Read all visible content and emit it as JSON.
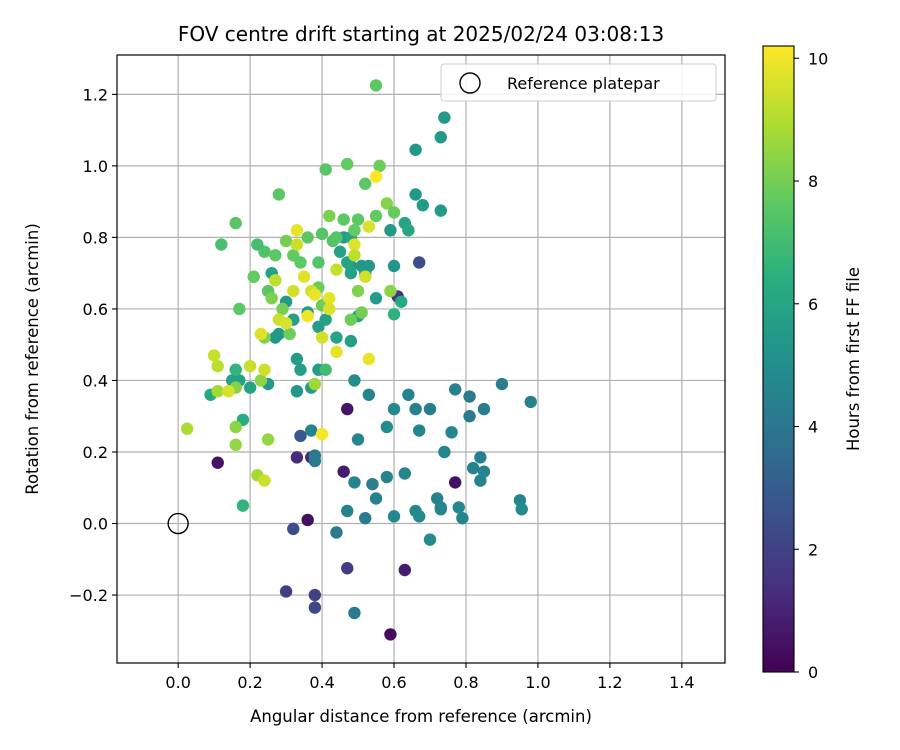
{
  "chart_data": {
    "type": "scatter",
    "title": "FOV centre drift starting at 2025/02/24 03:08:13",
    "xlabel": "Angular distance from reference (arcmin)",
    "ylabel": "Rotation from reference (arcmin)",
    "xlim": [
      -0.17,
      1.52
    ],
    "ylim": [
      -0.39,
      1.31
    ],
    "x_ticks": [
      "0.0",
      "0.2",
      "0.4",
      "0.6",
      "0.8",
      "1.0",
      "1.2",
      "1.4"
    ],
    "x_tick_values": [
      0,
      0.2,
      0.4,
      0.6,
      0.8,
      1.0,
      1.2,
      1.4
    ],
    "y_ticks": [
      "−0.2",
      "0.0",
      "0.2",
      "0.4",
      "0.6",
      "0.8",
      "1.0",
      "1.2"
    ],
    "y_tick_values": [
      -0.2,
      0,
      0.2,
      0.4,
      0.6,
      0.8,
      1.0,
      1.2
    ],
    "grid": true,
    "colormap": "viridis",
    "colorbar": {
      "label": "Hours from first FF file",
      "range": [
        0,
        10.2
      ],
      "ticks": [
        "0",
        "2",
        "4",
        "6",
        "8",
        "10"
      ],
      "tick_values": [
        0,
        2,
        4,
        6,
        8,
        10
      ]
    },
    "legend": {
      "label": "Reference platepar",
      "placement": "top-right",
      "marker": "open-circle"
    },
    "reference_point": {
      "x": 0.0,
      "y": 0.0
    },
    "points": [
      [
        0.59,
        -0.31,
        0.3
      ],
      [
        0.36,
        0.01,
        0.4
      ],
      [
        0.47,
        0.32,
        0.6
      ],
      [
        0.11,
        0.17,
        0.5
      ],
      [
        0.77,
        0.115,
        0.5
      ],
      [
        0.46,
        0.145,
        0.8
      ],
      [
        0.63,
        -0.13,
        0.8
      ],
      [
        0.37,
        0.185,
        1.2
      ],
      [
        0.33,
        0.185,
        1.2
      ],
      [
        0.47,
        -0.125,
        1.8
      ],
      [
        0.3,
        -0.19,
        1.9
      ],
      [
        0.38,
        -0.2,
        2.0
      ],
      [
        0.38,
        -0.235,
        2.2
      ],
      [
        0.32,
        -0.015,
        2.4
      ],
      [
        0.34,
        0.245,
        2.8
      ],
      [
        0.67,
        0.73,
        2.4
      ],
      [
        0.61,
        0.635,
        1.5
      ],
      [
        0.49,
        -0.25,
        4.1
      ],
      [
        0.44,
        -0.025,
        4.2
      ],
      [
        0.38,
        0.19,
        4.1
      ],
      [
        0.38,
        0.175,
        4.2
      ],
      [
        0.37,
        0.26,
        4.5
      ],
      [
        0.49,
        0.115,
        4.6
      ],
      [
        0.47,
        0.035,
        4.5
      ],
      [
        0.52,
        0.015,
        4.2
      ],
      [
        0.54,
        0.11,
        4.3
      ],
      [
        0.55,
        0.07,
        4.4
      ],
      [
        0.58,
        0.13,
        4.5
      ],
      [
        0.6,
        0.02,
        4.7
      ],
      [
        0.63,
        0.14,
        4.6
      ],
      [
        0.66,
        0.035,
        4.7
      ],
      [
        0.67,
        0.02,
        4.8
      ],
      [
        0.7,
        -0.045,
        4.8
      ],
      [
        0.72,
        0.07,
        4.5
      ],
      [
        0.73,
        0.045,
        4.6
      ],
      [
        0.73,
        0.04,
        4.7
      ],
      [
        0.78,
        0.045,
        4.7
      ],
      [
        0.79,
        0.015,
        4.6
      ],
      [
        0.82,
        0.155,
        4.5
      ],
      [
        0.84,
        0.12,
        4.5
      ],
      [
        0.85,
        0.145,
        4.6
      ],
      [
        0.84,
        0.185,
        4.4
      ],
      [
        0.95,
        0.065,
        4.6
      ],
      [
        0.955,
        0.04,
        4.8
      ],
      [
        0.98,
        0.34,
        4.4
      ],
      [
        0.9,
        0.39,
        4.3
      ],
      [
        0.85,
        0.32,
        4.3
      ],
      [
        0.81,
        0.355,
        4.2
      ],
      [
        0.81,
        0.3,
        4.2
      ],
      [
        0.77,
        0.375,
        4.5
      ],
      [
        0.76,
        0.255,
        4.7
      ],
      [
        0.74,
        0.2,
        4.6
      ],
      [
        0.7,
        0.32,
        4.3
      ],
      [
        0.66,
        0.32,
        4.5
      ],
      [
        0.67,
        0.26,
        4.6
      ],
      [
        0.64,
        0.36,
        4.5
      ],
      [
        0.6,
        0.32,
        4.8
      ],
      [
        0.58,
        0.27,
        4.9
      ],
      [
        0.53,
        0.36,
        4.7
      ],
      [
        0.5,
        0.235,
        4.6
      ],
      [
        0.49,
        0.4,
        4.9
      ],
      [
        0.33,
        0.37,
        5.4
      ],
      [
        0.37,
        0.38,
        5.6
      ],
      [
        0.39,
        0.43,
        5.6
      ],
      [
        0.33,
        0.46,
        5.6
      ],
      [
        0.34,
        0.43,
        5.7
      ],
      [
        0.28,
        0.53,
        5.5
      ],
      [
        0.27,
        0.52,
        5.4
      ],
      [
        0.36,
        0.59,
        5.6
      ],
      [
        0.3,
        0.62,
        5.5
      ],
      [
        0.32,
        0.57,
        5.7
      ],
      [
        0.39,
        0.55,
        5.6
      ],
      [
        0.41,
        0.57,
        5.8
      ],
      [
        0.44,
        0.52,
        5.9
      ],
      [
        0.48,
        0.51,
        5.7
      ],
      [
        0.5,
        0.58,
        6.0
      ],
      [
        0.52,
        0.7,
        5.6
      ],
      [
        0.51,
        0.72,
        5.5
      ],
      [
        0.48,
        0.72,
        5.4
      ],
      [
        0.48,
        0.7,
        5.8
      ],
      [
        0.47,
        0.73,
        5.9
      ],
      [
        0.45,
        0.76,
        5.8
      ],
      [
        0.46,
        0.8,
        5.6
      ],
      [
        0.48,
        0.8,
        5.9
      ],
      [
        0.53,
        0.72,
        5.4
      ],
      [
        0.55,
        0.63,
        5.6
      ],
      [
        0.59,
        0.82,
        5.5
      ],
      [
        0.6,
        0.72,
        5.3
      ],
      [
        0.63,
        0.84,
        5.9
      ],
      [
        0.64,
        0.82,
        6.0
      ],
      [
        0.66,
        0.92,
        5.5
      ],
      [
        0.68,
        0.89,
        5.5
      ],
      [
        0.66,
        1.045,
        5.4
      ],
      [
        0.73,
        1.08,
        5.5
      ],
      [
        0.74,
        1.135,
        5.4
      ],
      [
        0.73,
        0.875,
        5.5
      ],
      [
        0.62,
        0.62,
        6.1
      ],
      [
        0.6,
        0.585,
        6.5
      ],
      [
        0.25,
        0.39,
        5.5
      ],
      [
        0.2,
        0.38,
        5.9
      ],
      [
        0.15,
        0.4,
        5.8
      ],
      [
        0.17,
        0.4,
        5.8
      ],
      [
        0.09,
        0.36,
        6.2
      ],
      [
        0.18,
        0.29,
        6.3
      ],
      [
        0.16,
        0.43,
        6.6
      ],
      [
        0.26,
        0.7,
        5.8
      ],
      [
        0.18,
        0.05,
        6.6
      ],
      [
        0.41,
        0.43,
        7.0
      ],
      [
        0.24,
        0.76,
        7.3
      ],
      [
        0.28,
        0.92,
        7.5
      ],
      [
        0.27,
        0.75,
        7.6
      ],
      [
        0.25,
        0.65,
        7.5
      ],
      [
        0.22,
        0.78,
        7.1
      ],
      [
        0.12,
        0.78,
        7.2
      ],
      [
        0.16,
        0.84,
        7.5
      ],
      [
        0.17,
        0.6,
        7.6
      ],
      [
        0.21,
        0.69,
        7.7
      ],
      [
        0.32,
        0.75,
        7.7
      ],
      [
        0.34,
        0.73,
        7.6
      ],
      [
        0.36,
        0.8,
        7.6
      ],
      [
        0.39,
        0.73,
        7.4
      ],
      [
        0.4,
        0.81,
        7.4
      ],
      [
        0.41,
        0.99,
        7.5
      ],
      [
        0.43,
        0.79,
        7.4
      ],
      [
        0.44,
        0.8,
        7.4
      ],
      [
        0.46,
        0.85,
        7.6
      ],
      [
        0.47,
        1.005,
        7.7
      ],
      [
        0.49,
        0.82,
        7.7
      ],
      [
        0.5,
        0.85,
        7.6
      ],
      [
        0.52,
        0.95,
        7.6
      ],
      [
        0.55,
        0.86,
        7.7
      ],
      [
        0.55,
        1.225,
        7.6
      ],
      [
        0.56,
        1.0,
        7.9
      ],
      [
        0.58,
        0.895,
        8.3
      ],
      [
        0.6,
        0.87,
        7.8
      ],
      [
        0.59,
        0.65,
        8.4
      ],
      [
        0.5,
        0.65,
        8.2
      ],
      [
        0.51,
        0.59,
        8.0
      ],
      [
        0.48,
        0.57,
        7.9
      ],
      [
        0.4,
        0.61,
        7.9
      ],
      [
        0.39,
        0.66,
        7.9
      ],
      [
        0.42,
        0.86,
        8.1
      ],
      [
        0.3,
        0.79,
        8.0
      ],
      [
        0.29,
        0.6,
        8.0
      ],
      [
        0.31,
        0.53,
        7.9
      ],
      [
        0.26,
        0.63,
        8.1
      ],
      [
        0.24,
        0.52,
        8.2
      ],
      [
        0.23,
        0.4,
        8.4
      ],
      [
        0.16,
        0.38,
        8.3
      ],
      [
        0.16,
        0.27,
        8.4
      ],
      [
        0.16,
        0.22,
        8.5
      ],
      [
        0.25,
        0.235,
        8.5
      ],
      [
        0.22,
        0.135,
        8.8
      ],
      [
        0.025,
        0.265,
        8.9
      ],
      [
        0.11,
        0.37,
        8.8
      ],
      [
        0.11,
        0.44,
        9.1
      ],
      [
        0.38,
        0.39,
        8.7
      ],
      [
        0.24,
        0.12,
        9.4
      ],
      [
        0.1,
        0.47,
        9.3
      ],
      [
        0.14,
        0.37,
        9.6
      ],
      [
        0.23,
        0.53,
        9.7
      ],
      [
        0.24,
        0.43,
        9.5
      ],
      [
        0.2,
        0.44,
        9.3
      ],
      [
        0.27,
        0.68,
        9.2
      ],
      [
        0.28,
        0.57,
        9.4
      ],
      [
        0.3,
        0.56,
        9.6
      ],
      [
        0.32,
        0.65,
        9.5
      ],
      [
        0.33,
        0.78,
        9.4
      ],
      [
        0.33,
        0.82,
        9.8
      ],
      [
        0.35,
        0.69,
        9.7
      ],
      [
        0.37,
        0.65,
        9.5
      ],
      [
        0.36,
        0.58,
        10.0
      ],
      [
        0.38,
        0.64,
        9.9
      ],
      [
        0.4,
        0.52,
        9.5
      ],
      [
        0.4,
        0.25,
        10.1
      ],
      [
        0.42,
        0.63,
        9.8
      ],
      [
        0.42,
        0.6,
        9.6
      ],
      [
        0.44,
        0.48,
        9.8
      ],
      [
        0.44,
        0.71,
        9.3
      ],
      [
        0.49,
        0.78,
        9.7
      ],
      [
        0.49,
        0.75,
        9.2
      ],
      [
        0.53,
        0.46,
        9.9
      ],
      [
        0.53,
        0.83,
        9.6
      ],
      [
        0.55,
        0.97,
        10.2
      ],
      [
        0.52,
        0.69,
        9.5
      ]
    ]
  }
}
